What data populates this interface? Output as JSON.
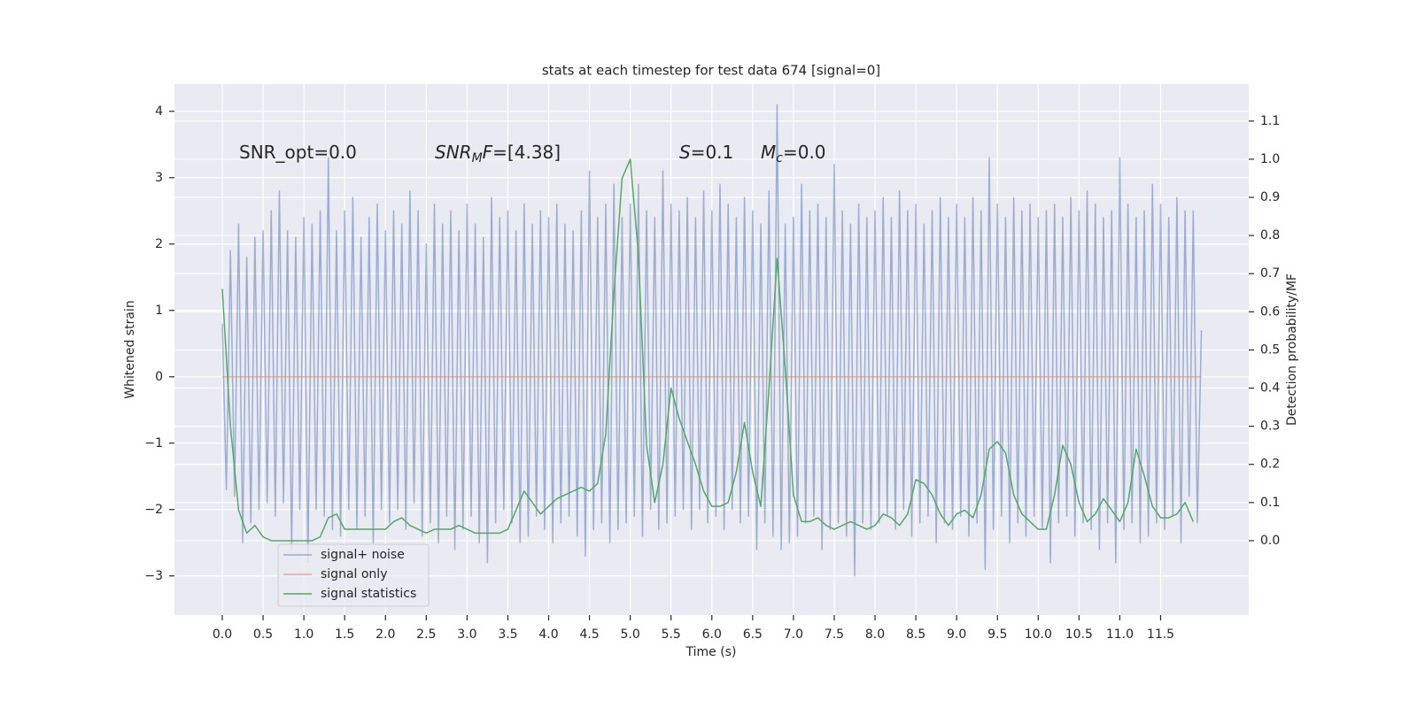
{
  "chart_data": {
    "type": "line",
    "title": "stats at each timestep for test data 674 [signal=0]",
    "xlabel": "Time (s)",
    "ylabel": "Whitened strain",
    "y2label": "Detection probability/MF",
    "xlim": [
      -0.586,
      12.58
    ],
    "ylim": [
      -3.59,
      4.41
    ],
    "y2lim": [
      -0.195,
      1.197
    ],
    "xticks": [
      {
        "value": 0,
        "label": "0.0"
      },
      0.5,
      {
        "value": 1,
        "label": "1.0"
      },
      1.5,
      {
        "value": 2,
        "label": "2.0"
      },
      2.5,
      {
        "value": 3,
        "label": "3.0"
      },
      3.5,
      {
        "value": 4,
        "label": "4.0"
      },
      4.5,
      {
        "value": 5,
        "label": "5.0"
      },
      5.5,
      {
        "value": 6,
        "label": "6.0"
      },
      6.5,
      {
        "value": 7,
        "label": "7.0"
      },
      7.5,
      {
        "value": 8,
        "label": "8.0"
      },
      8.5,
      {
        "value": 9,
        "label": "9.0"
      },
      9.5,
      {
        "value": 10,
        "label": "10.0"
      },
      10.5,
      {
        "value": 11,
        "label": "11.0"
      },
      11.5
    ],
    "yticks": [
      {
        "value": -3,
        "label": "−3"
      },
      {
        "value": -2,
        "label": "−2"
      },
      {
        "value": -1,
        "label": "−1"
      },
      0,
      1,
      2,
      3,
      4
    ],
    "y2ticks": [
      {
        "value": 0,
        "label": "0.0"
      },
      0.1,
      0.2,
      0.3,
      0.4,
      0.5,
      0.6,
      0.7,
      0.8,
      0.9,
      {
        "value": 1,
        "label": "1.0"
      },
      1.1
    ],
    "grid": true,
    "legend": "lower left",
    "annotations": [
      [
        {
          "text": "SNR_opt=0.0",
          "style": "normal"
        }
      ],
      [
        {
          "text": "SNR",
          "style": "italic"
        },
        {
          "text": "M",
          "style": "sub"
        },
        {
          "text": "F",
          "style": "italic"
        },
        {
          "text": "=[4.38]",
          "style": "normal"
        }
      ],
      [
        {
          "text": "S",
          "style": "italic"
        },
        {
          "text": "=0.1",
          "style": "normal"
        }
      ],
      [
        {
          "text": "M",
          "style": "italic"
        },
        {
          "text": "c",
          "style": "sub"
        },
        {
          "text": "=0.0",
          "style": "normal"
        }
      ]
    ],
    "series": [
      {
        "name": "signal+ noise",
        "color": "#4c72b0",
        "opacity": 0.5,
        "axis": "y",
        "x": [
          0,
          0.05,
          0.1,
          0.15,
          0.2,
          0.25,
          0.3,
          0.35,
          0.4,
          0.45,
          0.5,
          0.55,
          0.6,
          0.65,
          0.7,
          0.75,
          0.8,
          0.85,
          0.9,
          0.95,
          1,
          1.05,
          1.1,
          1.15,
          1.2,
          1.25,
          1.3,
          1.35,
          1.4,
          1.45,
          1.5,
          1.55,
          1.6,
          1.65,
          1.7,
          1.75,
          1.8,
          1.85,
          1.9,
          1.95,
          2,
          2.05,
          2.1,
          2.15,
          2.2,
          2.25,
          2.3,
          2.35,
          2.4,
          2.45,
          2.5,
          2.55,
          2.6,
          2.65,
          2.7,
          2.75,
          2.8,
          2.85,
          2.9,
          2.95,
          3,
          3.05,
          3.1,
          3.15,
          3.2,
          3.25,
          3.3,
          3.35,
          3.4,
          3.45,
          3.5,
          3.55,
          3.6,
          3.65,
          3.7,
          3.75,
          3.8,
          3.85,
          3.9,
          3.95,
          4,
          4.05,
          4.1,
          4.15,
          4.2,
          4.25,
          4.3,
          4.35,
          4.4,
          4.45,
          4.5,
          4.55,
          4.6,
          4.65,
          4.7,
          4.75,
          4.8,
          4.85,
          4.9,
          4.95,
          5,
          5.05,
          5.1,
          5.15,
          5.2,
          5.25,
          5.3,
          5.35,
          5.4,
          5.45,
          5.5,
          5.55,
          5.6,
          5.65,
          5.7,
          5.75,
          5.8,
          5.85,
          5.9,
          5.95,
          6,
          6.05,
          6.1,
          6.15,
          6.2,
          6.25,
          6.3,
          6.35,
          6.4,
          6.45,
          6.5,
          6.55,
          6.6,
          6.65,
          6.7,
          6.75,
          6.8,
          6.85,
          6.9,
          6.95,
          7,
          7.05,
          7.1,
          7.15,
          7.2,
          7.25,
          7.3,
          7.35,
          7.4,
          7.45,
          7.5,
          7.55,
          7.6,
          7.65,
          7.7,
          7.75,
          7.8,
          7.85,
          7.9,
          7.95,
          8,
          8.05,
          8.1,
          8.15,
          8.2,
          8.25,
          8.3,
          8.35,
          8.4,
          8.45,
          8.5,
          8.55,
          8.6,
          8.65,
          8.7,
          8.75,
          8.8,
          8.85,
          8.9,
          8.95,
          9,
          9.05,
          9.1,
          9.15,
          9.2,
          9.25,
          9.3,
          9.35,
          9.4,
          9.45,
          9.5,
          9.55,
          9.6,
          9.65,
          9.7,
          9.75,
          9.8,
          9.85,
          9.9,
          9.95,
          10,
          10.05,
          10.1,
          10.15,
          10.2,
          10.25,
          10.3,
          10.35,
          10.4,
          10.45,
          10.5,
          10.55,
          10.6,
          10.65,
          10.7,
          10.75,
          10.8,
          10.85,
          10.9,
          10.95,
          11,
          11.05,
          11.1,
          11.15,
          11.2,
          11.25,
          11.3,
          11.35,
          11.4,
          11.45,
          11.5,
          11.55,
          11.6,
          11.65,
          11.7,
          11.75,
          11.8,
          11.85,
          11.9,
          11.95,
          12
        ],
        "values": [
          0.8,
          -1.7,
          1.9,
          -1.8,
          2.3,
          -2.5,
          1.8,
          -2.2,
          2.1,
          -2.0,
          2.2,
          -1.9,
          2.5,
          -2.1,
          2.8,
          -1.9,
          2.2,
          -2.6,
          2.1,
          -2.0,
          2.4,
          -2.8,
          2.3,
          -2.0,
          2.5,
          -2.1,
          3.3,
          -2.3,
          2.2,
          -2.4,
          2.5,
          -2.0,
          2.7,
          -2.3,
          2.1,
          -2.1,
          2.4,
          -2.5,
          2.6,
          -2.0,
          2.2,
          -2.2,
          2.5,
          -2.0,
          2.3,
          -2.3,
          2.8,
          -1.9,
          2.5,
          -2.4,
          2.0,
          -2.2,
          2.6,
          -2.5,
          2.3,
          -2.1,
          2.5,
          -2.6,
          2.2,
          -2.3,
          2.6,
          -2.1,
          2.3,
          -2.5,
          2.1,
          -2.8,
          2.7,
          -2.2,
          2.4,
          -2.0,
          2.5,
          -2.2,
          2.2,
          -2.5,
          2.6,
          -2.4,
          2.3,
          -2.1,
          2.5,
          -2.3,
          2.4,
          -2.5,
          2.6,
          -2.2,
          2.3,
          -2.1,
          2.2,
          -2.4,
          2.5,
          -2.7,
          3.1,
          -2.3,
          2.4,
          -2.2,
          2.6,
          -2.5,
          2.9,
          -2.3,
          2.4,
          -2.2,
          2.6,
          -2.1,
          2.9,
          -2.4,
          2.5,
          -2.0,
          2.4,
          -2.3,
          3.1,
          -2.2,
          2.6,
          -2.1,
          2.5,
          -2.0,
          2.7,
          -2.3,
          2.4,
          -2.0,
          2.8,
          -2.2,
          2.5,
          -2.1,
          2.9,
          -2.3,
          2.6,
          -2.0,
          2.4,
          -2.2,
          2.7,
          -2.1,
          2.5,
          -2.6,
          2.3,
          -2.2,
          2.8,
          -2.4,
          4.1,
          -2.6,
          2.3,
          -2.5,
          2.4,
          -2.4,
          2.9,
          -2.2,
          2.5,
          -2.1,
          2.6,
          -2.6,
          2.4,
          -2.3,
          3.2,
          -2.2,
          2.5,
          -2.4,
          2.3,
          -3.0,
          2.6,
          -2.2,
          2.4,
          -2.3,
          2.5,
          -2.2,
          2.7,
          -2.1,
          2.4,
          -2.3,
          2.8,
          -2.0,
          2.5,
          -2.4,
          2.6,
          -2.2,
          2.3,
          -2.1,
          2.5,
          -2.5,
          2.7,
          -2.2,
          2.4,
          -2.3,
          2.6,
          -2.1,
          2.4,
          -2.4,
          2.7,
          -2.2,
          2.5,
          -2.9,
          3.3,
          -2.3,
          2.6,
          -2.1,
          2.4,
          -2.5,
          2.7,
          -2.2,
          2.5,
          -2.4,
          2.6,
          -2.1,
          2.4,
          -2.3,
          2.5,
          -2.8,
          2.6,
          -2.2,
          2.4,
          -2.1,
          2.7,
          -2.4,
          2.5,
          -2.2,
          2.8,
          -2.3,
          2.6,
          -2.6,
          2.4,
          -2.2,
          2.5,
          -2.8,
          3.3,
          -2.3,
          2.6,
          -2.2,
          2.4,
          -2.5,
          2.5,
          -2.4,
          2.9,
          -2.2,
          2.6,
          -2.3,
          2.4,
          -2.1,
          2.7,
          -2.5,
          2.5,
          -1.8,
          2.5,
          -2.2,
          0.7
        ]
      },
      {
        "name": "signal only",
        "color": "#dd8452",
        "opacity": 0.6,
        "axis": "y",
        "x": [
          0,
          12
        ],
        "values": [
          0,
          0
        ]
      },
      {
        "name": "signal statistics",
        "color": "#55a868",
        "opacity": 1,
        "axis": "y2",
        "x": [
          0,
          0.1,
          0.2,
          0.3,
          0.4,
          0.5,
          0.6,
          0.7,
          0.8,
          0.9,
          1,
          1.1,
          1.2,
          1.3,
          1.4,
          1.5,
          1.6,
          1.7,
          1.8,
          1.9,
          2,
          2.1,
          2.2,
          2.3,
          2.4,
          2.5,
          2.6,
          2.7,
          2.8,
          2.9,
          3,
          3.1,
          3.2,
          3.3,
          3.4,
          3.5,
          3.6,
          3.7,
          3.8,
          3.9,
          4,
          4.1,
          4.2,
          4.3,
          4.4,
          4.5,
          4.6,
          4.7,
          4.8,
          4.9,
          5,
          5.1,
          5.2,
          5.3,
          5.4,
          5.5,
          5.6,
          5.7,
          5.8,
          5.9,
          6,
          6.1,
          6.2,
          6.3,
          6.4,
          6.5,
          6.6,
          6.7,
          6.8,
          6.9,
          7,
          7.1,
          7.2,
          7.3,
          7.4,
          7.5,
          7.6,
          7.7,
          7.8,
          7.9,
          8,
          8.1,
          8.2,
          8.3,
          8.4,
          8.5,
          8.6,
          8.7,
          8.8,
          8.9,
          9,
          9.1,
          9.2,
          9.3,
          9.4,
          9.5,
          9.6,
          9.7,
          9.8,
          9.9,
          10,
          10.1,
          10.2,
          10.3,
          10.4,
          10.5,
          10.6,
          10.7,
          10.8,
          10.9,
          11,
          11.1,
          11.2,
          11.3,
          11.4,
          11.5,
          11.6,
          11.7,
          11.8,
          11.9
        ],
        "values": [
          0.66,
          0.3,
          0.08,
          0.02,
          0.04,
          0.01,
          0.0,
          0.0,
          0.0,
          0.0,
          0.0,
          0.0,
          0.01,
          0.06,
          0.07,
          0.03,
          0.03,
          0.03,
          0.03,
          0.03,
          0.03,
          0.05,
          0.06,
          0.04,
          0.03,
          0.02,
          0.03,
          0.03,
          0.03,
          0.04,
          0.03,
          0.02,
          0.02,
          0.02,
          0.02,
          0.03,
          0.08,
          0.13,
          0.1,
          0.07,
          0.09,
          0.11,
          0.12,
          0.13,
          0.14,
          0.13,
          0.15,
          0.28,
          0.65,
          0.95,
          1.0,
          0.75,
          0.25,
          0.1,
          0.2,
          0.4,
          0.32,
          0.26,
          0.2,
          0.13,
          0.09,
          0.09,
          0.1,
          0.18,
          0.31,
          0.18,
          0.09,
          0.4,
          0.74,
          0.45,
          0.12,
          0.05,
          0.05,
          0.06,
          0.04,
          0.03,
          0.04,
          0.05,
          0.04,
          0.03,
          0.04,
          0.07,
          0.06,
          0.04,
          0.07,
          0.16,
          0.15,
          0.12,
          0.07,
          0.04,
          0.07,
          0.08,
          0.06,
          0.12,
          0.24,
          0.26,
          0.23,
          0.12,
          0.07,
          0.05,
          0.03,
          0.03,
          0.12,
          0.25,
          0.2,
          0.1,
          0.05,
          0.07,
          0.11,
          0.08,
          0.05,
          0.1,
          0.24,
          0.17,
          0.09,
          0.06,
          0.06,
          0.07,
          0.1,
          0.05
        ]
      }
    ]
  }
}
